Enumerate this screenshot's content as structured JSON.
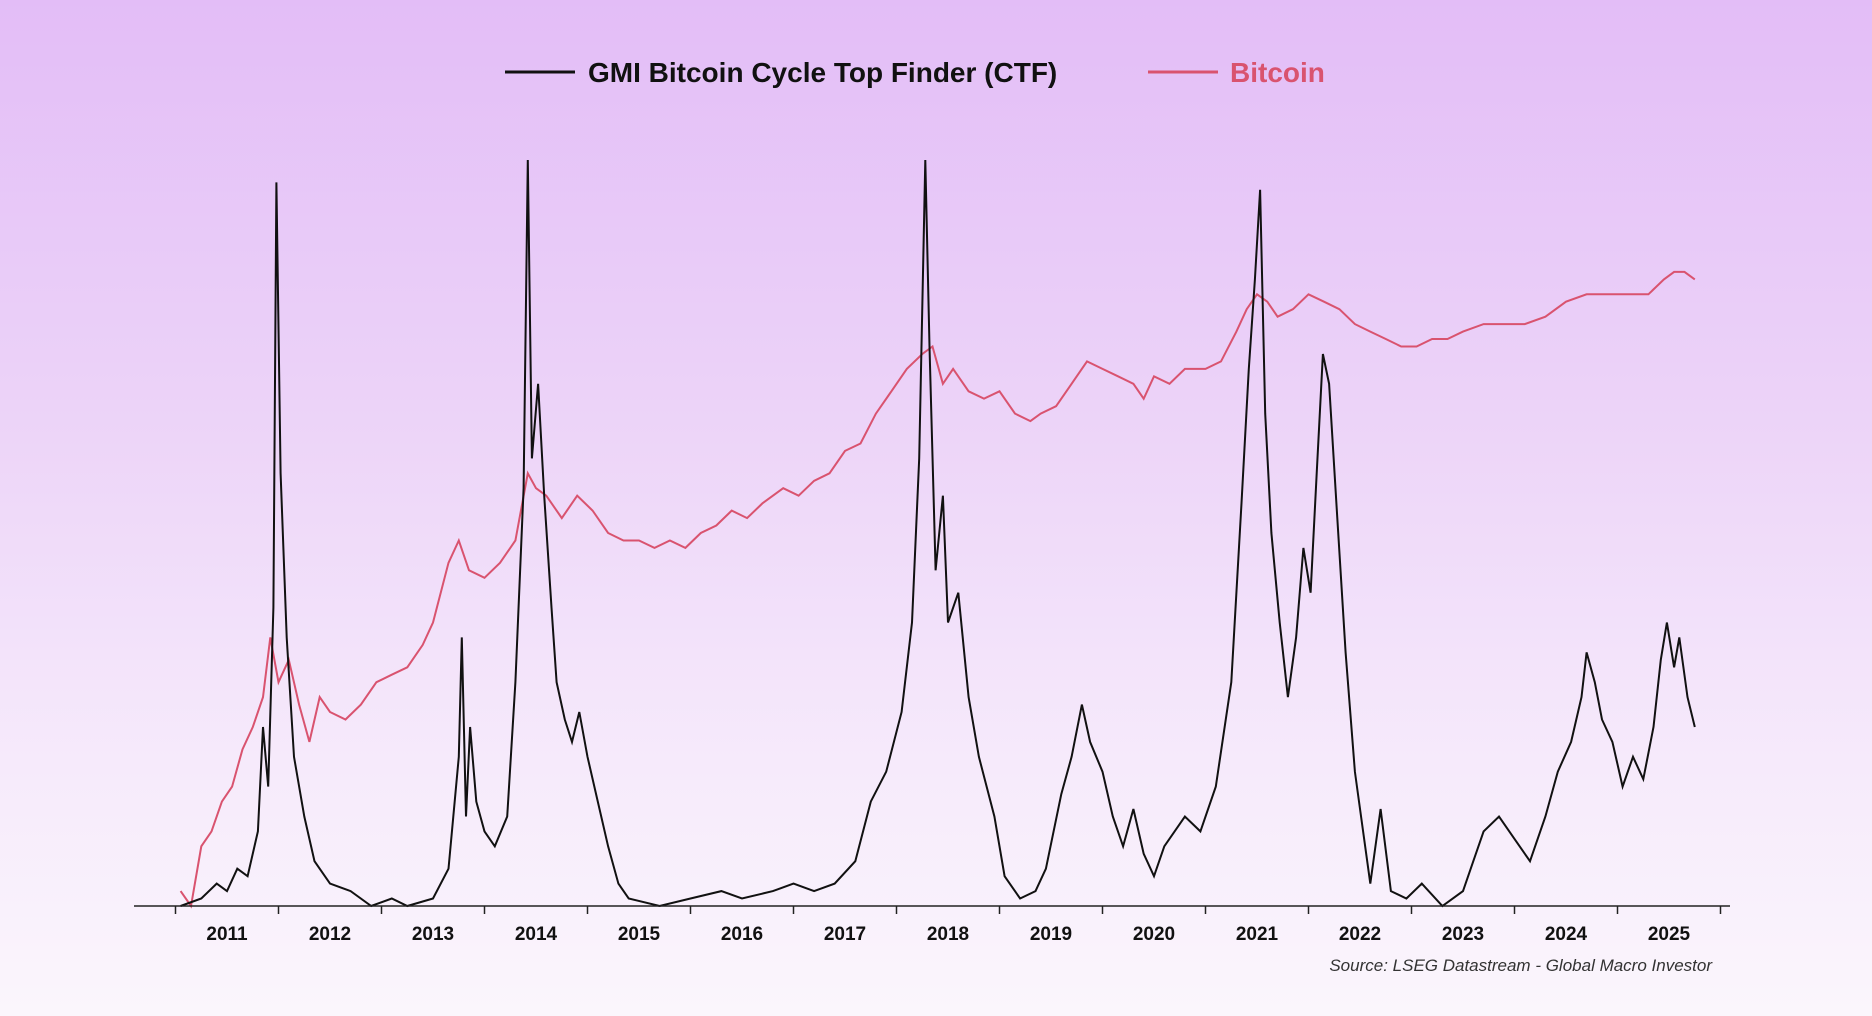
{
  "chart_data": {
    "type": "line",
    "x_axis": {
      "tick_labels": [
        "2011",
        "2012",
        "2013",
        "2014",
        "2015",
        "2016",
        "2017",
        "2018",
        "2019",
        "2020",
        "2021",
        "2022",
        "2023",
        "2024",
        "2025"
      ],
      "range": [
        "2010-07",
        "2025-12"
      ]
    },
    "y_axis": {
      "visible": false,
      "range": [
        0,
        100
      ]
    },
    "grid": false,
    "legend_placement": "top-center",
    "series": [
      {
        "name": "GMI Bitcoin Cycle Top Finder (CTF)",
        "color": "#111111",
        "points": [
          [
            2010.55,
            0
          ],
          [
            2010.75,
            1
          ],
          [
            2010.9,
            3
          ],
          [
            2011.0,
            2
          ],
          [
            2011.1,
            5
          ],
          [
            2011.2,
            4
          ],
          [
            2011.3,
            10
          ],
          [
            2011.35,
            24
          ],
          [
            2011.4,
            16
          ],
          [
            2011.45,
            40
          ],
          [
            2011.48,
            97
          ],
          [
            2011.52,
            58
          ],
          [
            2011.58,
            36
          ],
          [
            2011.65,
            20
          ],
          [
            2011.75,
            12
          ],
          [
            2011.85,
            6
          ],
          [
            2012.0,
            3
          ],
          [
            2012.2,
            2
          ],
          [
            2012.4,
            0
          ],
          [
            2012.6,
            1
          ],
          [
            2012.75,
            0
          ],
          [
            2013.0,
            1
          ],
          [
            2013.15,
            5
          ],
          [
            2013.25,
            20
          ],
          [
            2013.28,
            36
          ],
          [
            2013.32,
            12
          ],
          [
            2013.36,
            24
          ],
          [
            2013.42,
            14
          ],
          [
            2013.5,
            10
          ],
          [
            2013.6,
            8
          ],
          [
            2013.72,
            12
          ],
          [
            2013.8,
            30
          ],
          [
            2013.88,
            56
          ],
          [
            2013.92,
            100
          ],
          [
            2013.96,
            60
          ],
          [
            2014.02,
            70
          ],
          [
            2014.08,
            55
          ],
          [
            2014.15,
            40
          ],
          [
            2014.2,
            30
          ],
          [
            2014.28,
            25
          ],
          [
            2014.35,
            22
          ],
          [
            2014.42,
            26
          ],
          [
            2014.5,
            20
          ],
          [
            2014.6,
            14
          ],
          [
            2014.7,
            8
          ],
          [
            2014.8,
            3
          ],
          [
            2014.9,
            1
          ],
          [
            2015.2,
            0
          ],
          [
            2015.5,
            1
          ],
          [
            2015.8,
            2
          ],
          [
            2016.0,
            1
          ],
          [
            2016.3,
            2
          ],
          [
            2016.5,
            3
          ],
          [
            2016.7,
            2
          ],
          [
            2016.9,
            3
          ],
          [
            2017.1,
            6
          ],
          [
            2017.25,
            14
          ],
          [
            2017.4,
            18
          ],
          [
            2017.55,
            26
          ],
          [
            2017.65,
            38
          ],
          [
            2017.72,
            60
          ],
          [
            2017.78,
            100
          ],
          [
            2017.82,
            75
          ],
          [
            2017.88,
            45
          ],
          [
            2017.95,
            55
          ],
          [
            2018.0,
            38
          ],
          [
            2018.1,
            42
          ],
          [
            2018.2,
            28
          ],
          [
            2018.3,
            20
          ],
          [
            2018.45,
            12
          ],
          [
            2018.55,
            4
          ],
          [
            2018.7,
            1
          ],
          [
            2018.85,
            2
          ],
          [
            2018.95,
            5
          ],
          [
            2019.1,
            15
          ],
          [
            2019.2,
            20
          ],
          [
            2019.3,
            27
          ],
          [
            2019.38,
            22
          ],
          [
            2019.5,
            18
          ],
          [
            2019.6,
            12
          ],
          [
            2019.7,
            8
          ],
          [
            2019.8,
            13
          ],
          [
            2019.9,
            7
          ],
          [
            2020.0,
            4
          ],
          [
            2020.1,
            8
          ],
          [
            2020.2,
            10
          ],
          [
            2020.3,
            12
          ],
          [
            2020.45,
            10
          ],
          [
            2020.6,
            16
          ],
          [
            2020.75,
            30
          ],
          [
            2020.85,
            54
          ],
          [
            2020.92,
            72
          ],
          [
            2020.98,
            84
          ],
          [
            2021.03,
            96
          ],
          [
            2021.08,
            66
          ],
          [
            2021.14,
            50
          ],
          [
            2021.22,
            38
          ],
          [
            2021.3,
            28
          ],
          [
            2021.38,
            36
          ],
          [
            2021.45,
            48
          ],
          [
            2021.52,
            42
          ],
          [
            2021.58,
            58
          ],
          [
            2021.64,
            74
          ],
          [
            2021.7,
            70
          ],
          [
            2021.78,
            52
          ],
          [
            2021.86,
            34
          ],
          [
            2021.95,
            18
          ],
          [
            2022.03,
            10
          ],
          [
            2022.1,
            3
          ],
          [
            2022.2,
            13
          ],
          [
            2022.3,
            2
          ],
          [
            2022.45,
            1
          ],
          [
            2022.6,
            3
          ],
          [
            2022.8,
            0
          ],
          [
            2023.0,
            2
          ],
          [
            2023.1,
            6
          ],
          [
            2023.2,
            10
          ],
          [
            2023.35,
            12
          ],
          [
            2023.5,
            9
          ],
          [
            2023.65,
            6
          ],
          [
            2023.8,
            12
          ],
          [
            2023.92,
            18
          ],
          [
            2024.05,
            22
          ],
          [
            2024.15,
            28
          ],
          [
            2024.2,
            34
          ],
          [
            2024.28,
            30
          ],
          [
            2024.35,
            25
          ],
          [
            2024.45,
            22
          ],
          [
            2024.55,
            16
          ],
          [
            2024.65,
            20
          ],
          [
            2024.75,
            17
          ],
          [
            2024.85,
            24
          ],
          [
            2024.92,
            33
          ],
          [
            2024.98,
            38
          ],
          [
            2025.05,
            32
          ],
          [
            2025.1,
            36
          ],
          [
            2025.18,
            28
          ],
          [
            2025.25,
            24
          ]
        ]
      },
      {
        "name": "Bitcoin",
        "color": "#d9536f",
        "points": [
          [
            2010.55,
            2
          ],
          [
            2010.65,
            0
          ],
          [
            2010.75,
            8
          ],
          [
            2010.85,
            10
          ],
          [
            2010.95,
            14
          ],
          [
            2011.05,
            16
          ],
          [
            2011.15,
            21
          ],
          [
            2011.25,
            24
          ],
          [
            2011.35,
            28
          ],
          [
            2011.42,
            36
          ],
          [
            2011.5,
            30
          ],
          [
            2011.6,
            33
          ],
          [
            2011.7,
            27
          ],
          [
            2011.8,
            22
          ],
          [
            2011.9,
            28
          ],
          [
            2012.0,
            26
          ],
          [
            2012.15,
            25
          ],
          [
            2012.3,
            27
          ],
          [
            2012.45,
            30
          ],
          [
            2012.6,
            31
          ],
          [
            2012.75,
            32
          ],
          [
            2012.9,
            35
          ],
          [
            2013.0,
            38
          ],
          [
            2013.15,
            46
          ],
          [
            2013.25,
            49
          ],
          [
            2013.35,
            45
          ],
          [
            2013.5,
            44
          ],
          [
            2013.65,
            46
          ],
          [
            2013.8,
            49
          ],
          [
            2013.92,
            58
          ],
          [
            2014.0,
            56
          ],
          [
            2014.1,
            55
          ],
          [
            2014.25,
            52
          ],
          [
            2014.4,
            55
          ],
          [
            2014.55,
            53
          ],
          [
            2014.7,
            50
          ],
          [
            2014.85,
            49
          ],
          [
            2015.0,
            49
          ],
          [
            2015.15,
            48
          ],
          [
            2015.3,
            49
          ],
          [
            2015.45,
            48
          ],
          [
            2015.6,
            50
          ],
          [
            2015.75,
            51
          ],
          [
            2015.9,
            53
          ],
          [
            2016.05,
            52
          ],
          [
            2016.2,
            54
          ],
          [
            2016.4,
            56
          ],
          [
            2016.55,
            55
          ],
          [
            2016.7,
            57
          ],
          [
            2016.85,
            58
          ],
          [
            2017.0,
            61
          ],
          [
            2017.15,
            62
          ],
          [
            2017.3,
            66
          ],
          [
            2017.45,
            69
          ],
          [
            2017.6,
            72
          ],
          [
            2017.75,
            74
          ],
          [
            2017.85,
            75
          ],
          [
            2017.95,
            70
          ],
          [
            2018.05,
            72
          ],
          [
            2018.2,
            69
          ],
          [
            2018.35,
            68
          ],
          [
            2018.5,
            69
          ],
          [
            2018.65,
            66
          ],
          [
            2018.8,
            65
          ],
          [
            2018.9,
            66
          ],
          [
            2019.05,
            67
          ],
          [
            2019.2,
            70
          ],
          [
            2019.35,
            73
          ],
          [
            2019.5,
            72
          ],
          [
            2019.65,
            71
          ],
          [
            2019.8,
            70
          ],
          [
            2019.9,
            68
          ],
          [
            2020.0,
            71
          ],
          [
            2020.15,
            70
          ],
          [
            2020.3,
            72
          ],
          [
            2020.5,
            72
          ],
          [
            2020.65,
            73
          ],
          [
            2020.8,
            77
          ],
          [
            2020.9,
            80
          ],
          [
            2021.0,
            82
          ],
          [
            2021.1,
            81
          ],
          [
            2021.2,
            79
          ],
          [
            2021.35,
            80
          ],
          [
            2021.5,
            82
          ],
          [
            2021.65,
            81
          ],
          [
            2021.8,
            80
          ],
          [
            2021.95,
            78
          ],
          [
            2022.1,
            77
          ],
          [
            2022.25,
            76
          ],
          [
            2022.4,
            75
          ],
          [
            2022.55,
            75
          ],
          [
            2022.7,
            76
          ],
          [
            2022.85,
            76
          ],
          [
            2023.0,
            77
          ],
          [
            2023.2,
            78
          ],
          [
            2023.4,
            78
          ],
          [
            2023.6,
            78
          ],
          [
            2023.8,
            79
          ],
          [
            2024.0,
            81
          ],
          [
            2024.2,
            82
          ],
          [
            2024.4,
            82
          ],
          [
            2024.6,
            82
          ],
          [
            2024.8,
            82
          ],
          [
            2024.95,
            84
          ],
          [
            2025.05,
            85
          ],
          [
            2025.15,
            85
          ],
          [
            2025.25,
            84
          ]
        ]
      }
    ],
    "source": "Source: LSEG Datastream - Global Macro Investor"
  }
}
